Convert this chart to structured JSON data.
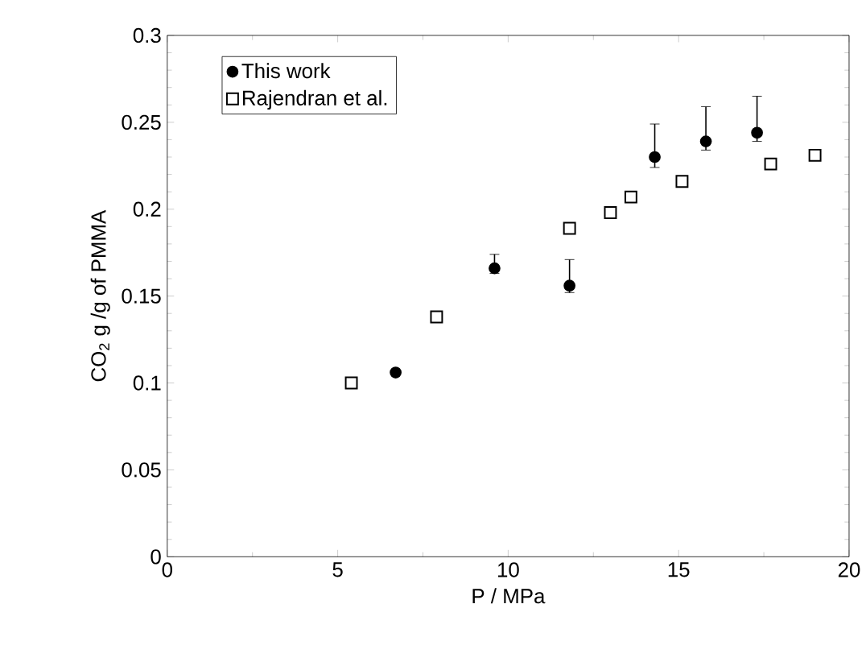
{
  "chart_data": {
    "type": "scatter",
    "xlabel": "P / MPa",
    "ylabel": "CO$_{2}$ g /g of PMMA",
    "xlim": [
      0,
      20
    ],
    "xticks": [
      0,
      5,
      10,
      15,
      20
    ],
    "ylim": [
      0,
      0.3
    ],
    "yticks": [
      {
        "value": 0,
        "label": "0"
      },
      {
        "value": 0.05,
        "label": "0.05"
      },
      {
        "value": 0.1,
        "label": "0.1"
      },
      {
        "value": 0.15,
        "label": "0.15"
      },
      {
        "value": 0.2,
        "label": "0.2"
      },
      {
        "value": 0.25,
        "label": "0.25"
      },
      {
        "value": 0.3,
        "label": "0.3"
      }
    ],
    "legend": "top left",
    "grid": false,
    "series": [
      {
        "name": "This work",
        "color": "#000000",
        "marker": "circle",
        "x": [
          6.7,
          9.6,
          11.8,
          14.3,
          15.8,
          17.3
        ],
        "values": [
          0.106,
          0.166,
          0.156,
          0.23,
          0.239,
          0.244
        ],
        "errors": [
          null,
          [
            0.163,
            0.174
          ],
          [
            0.152,
            0.171
          ],
          [
            0.224,
            0.249
          ],
          [
            0.234,
            0.259
          ],
          [
            0.239,
            0.265
          ]
        ]
      },
      {
        "name": "Rajendran et al.",
        "color": "#000000",
        "marker": "square",
        "x": [
          5.4,
          7.9,
          11.8,
          13.0,
          13.6,
          15.1,
          17.7,
          19.0
        ],
        "values": [
          0.1,
          0.138,
          0.189,
          0.198,
          0.207,
          0.216,
          0.226,
          0.231
        ]
      }
    ]
  }
}
